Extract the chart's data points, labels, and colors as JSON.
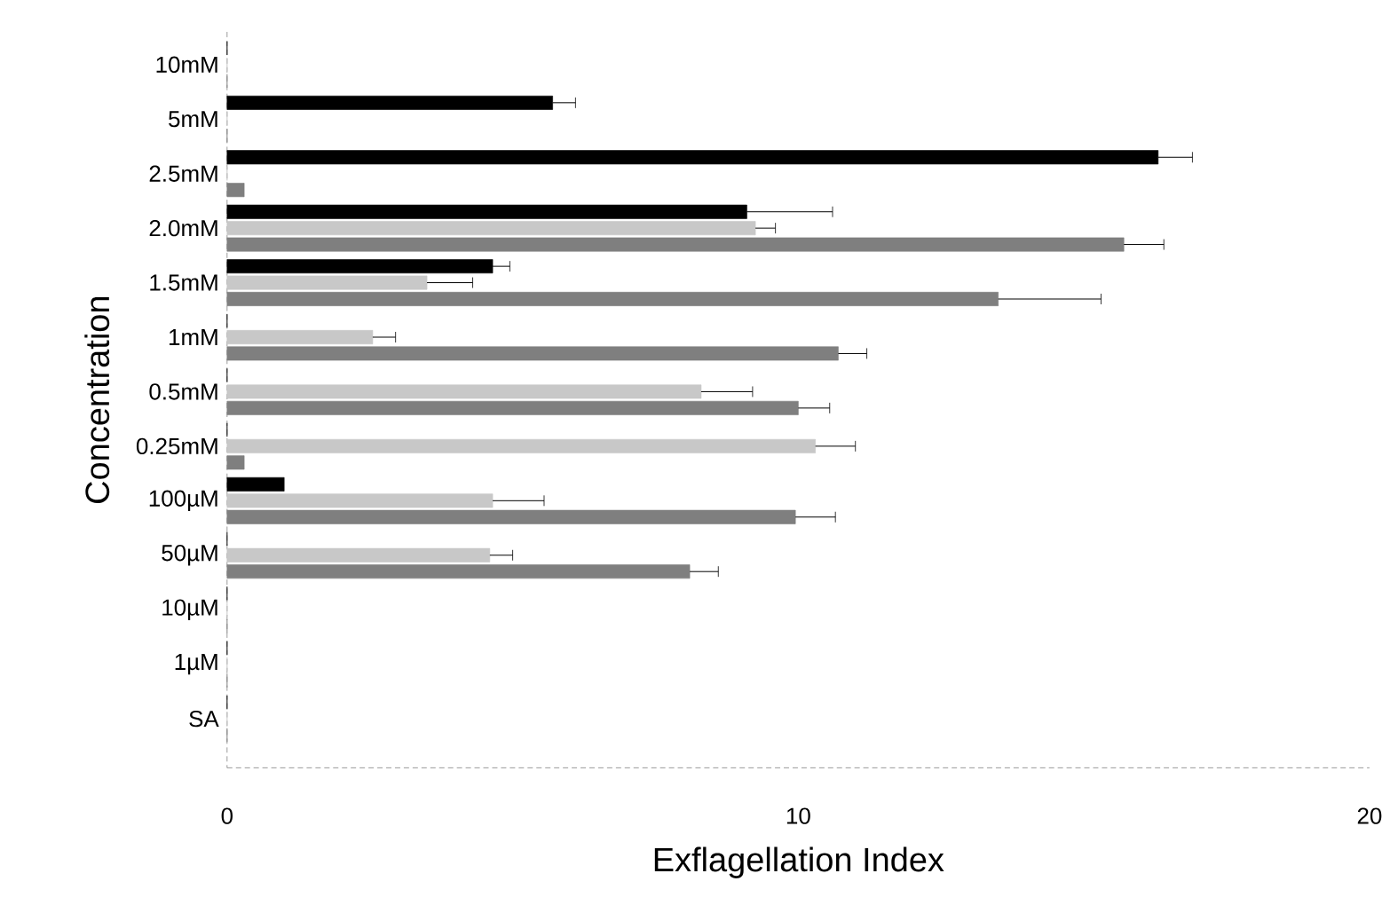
{
  "chart_data": {
    "type": "bar",
    "orientation": "horizontal",
    "categories": [
      "10mM",
      "5mM",
      "2.5mM",
      "2.0mM",
      "1.5mM",
      "1mM",
      "0.5mM",
      "0.25mM",
      "100µM",
      "50µM",
      "10µM",
      "1µM",
      "SA"
    ],
    "series": [
      {
        "color": "#000000",
        "values": [
          0,
          5.7,
          16.3,
          9.1,
          4.65,
          0,
          0,
          0,
          1.0,
          0,
          0,
          0,
          0
        ],
        "errors": [
          null,
          0.4,
          0.6,
          1.5,
          0.3,
          null,
          null,
          null,
          null,
          null,
          null,
          null,
          null
        ]
      },
      {
        "color": "#c8c8c8",
        "values": [
          0,
          0,
          0,
          9.25,
          3.5,
          2.55,
          8.3,
          10.3,
          4.65,
          4.6,
          0,
          0,
          0
        ],
        "errors": [
          null,
          null,
          null,
          0.35,
          0.8,
          0.4,
          0.9,
          0.7,
          0.9,
          0.4,
          null,
          null,
          null
        ]
      },
      {
        "color": "#7f7f7f",
        "values": [
          0,
          0,
          0.3,
          15.7,
          13.5,
          10.7,
          10.0,
          0.3,
          9.95,
          8.1,
          0,
          0,
          0
        ],
        "errors": [
          null,
          null,
          null,
          0.7,
          1.8,
          0.5,
          0.55,
          null,
          0.7,
          0.5,
          null,
          null,
          null
        ]
      }
    ],
    "xlabel": "Exflagellation Index",
    "ylabel": "Concentration",
    "xlim": [
      0,
      20
    ],
    "xticks": [
      0,
      10,
      20
    ]
  }
}
